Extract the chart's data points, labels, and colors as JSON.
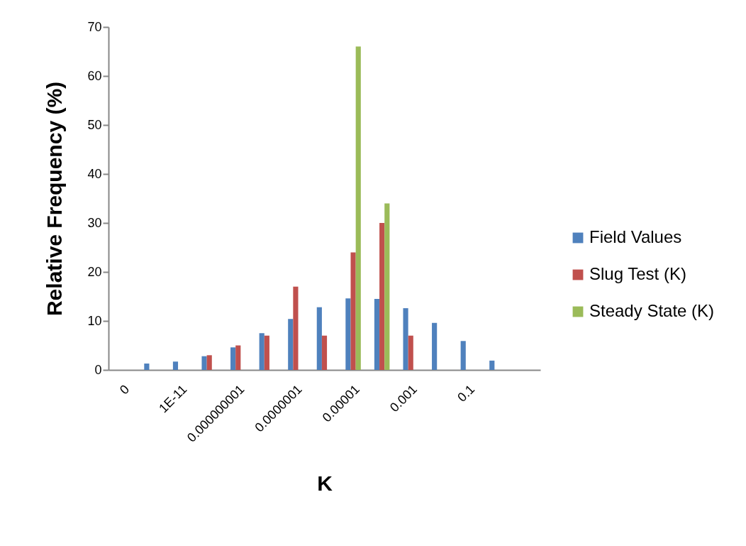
{
  "chart_data": {
    "type": "bar",
    "xlabel": "K",
    "ylabel": "Relative Frequency (%)",
    "categories": [
      "0",
      null,
      "1E-11",
      null,
      "0.000000001",
      null,
      "0.0000001",
      null,
      "0.00001",
      null,
      "0.001",
      null,
      "0.1",
      null,
      null
    ],
    "series": [
      {
        "name": "Field Values",
        "color": "#4f81bd",
        "values": [
          null,
          1.3,
          1.7,
          2.8,
          4.6,
          7.5,
          10.4,
          12.8,
          14.6,
          14.5,
          12.6,
          9.6,
          5.9,
          1.9,
          null
        ]
      },
      {
        "name": "Slug Test (K)",
        "color": "#c0504d",
        "values": [
          null,
          null,
          null,
          3,
          5,
          7,
          17,
          7,
          24,
          30,
          7,
          null,
          null,
          null,
          null
        ]
      },
      {
        "name": "Steady State (K)",
        "color": "#9bbb59",
        "values": [
          null,
          null,
          null,
          null,
          null,
          null,
          null,
          null,
          66,
          34,
          null,
          null,
          null,
          null,
          null
        ]
      }
    ],
    "ylim": [
      0,
      70
    ],
    "yticks": [
      0,
      10,
      20,
      30,
      40,
      50,
      60,
      70
    ],
    "grid": false,
    "legend": "right"
  }
}
